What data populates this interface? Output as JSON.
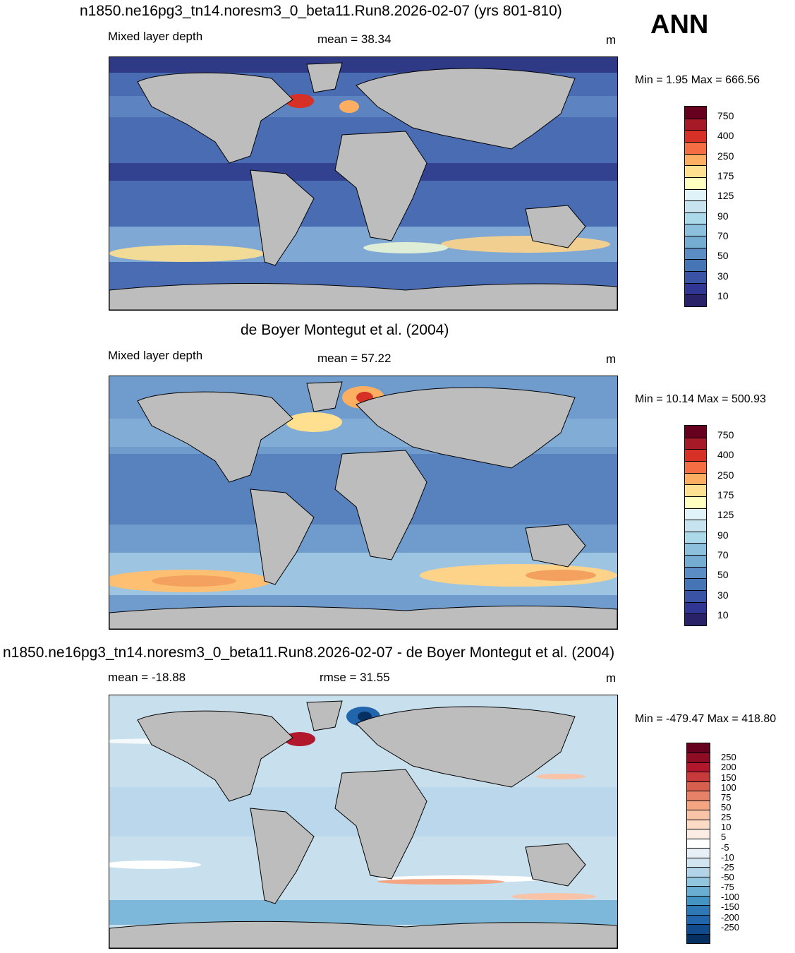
{
  "season": "ANN",
  "panels": [
    {
      "title": "n1850.ne16pg3_tn14.noresm3_0_beta11.Run8.2026-02-07 (yrs 801-810)",
      "left_label": "Mixed layer depth",
      "center_label": "mean =  38.34",
      "units": "m",
      "minmax": "Min =    1.95 Max = 666.56",
      "colorbar": {
        "labels": [
          "750",
          "400",
          "250",
          "175",
          "125",
          "90",
          "70",
          "50",
          "30",
          "10"
        ],
        "colors": [
          "#67001f",
          "#a61a28",
          "#d73027",
          "#f46d43",
          "#fdae61",
          "#fee090",
          "#ffffbf",
          "#e0f3f8",
          "#c6e3ef",
          "#abd9e9",
          "#8cc0dd",
          "#74add1",
          "#5b8cc4",
          "#4575b4",
          "#3b53a4",
          "#313695",
          "#2a2268"
        ]
      }
    },
    {
      "title": "de Boyer Montegut et al. (2004)",
      "left_label": "Mixed layer depth",
      "center_label": "mean =  57.22",
      "units": "m",
      "minmax": "Min =  10.14 Max = 500.93",
      "colorbar": {
        "labels": [
          "750",
          "400",
          "250",
          "175",
          "125",
          "90",
          "70",
          "50",
          "30",
          "10"
        ],
        "colors": [
          "#67001f",
          "#a61a28",
          "#d73027",
          "#f46d43",
          "#fdae61",
          "#fee090",
          "#ffffbf",
          "#e0f3f8",
          "#c6e3ef",
          "#abd9e9",
          "#8cc0dd",
          "#74add1",
          "#5b8cc4",
          "#4575b4",
          "#3b53a4",
          "#313695",
          "#2a2268"
        ]
      }
    },
    {
      "title": "n1850.ne16pg3_tn14.noresm3_0_beta11.Run8.2026-02-07 - de Boyer Montegut et al. (2004)",
      "left_label": "mean = -18.88",
      "center_label": "rmse =  31.55",
      "units": "m",
      "minmax": "Min = -479.47 Max = 418.80",
      "colorbar": {
        "labels": [
          "250",
          "200",
          "150",
          "100",
          "75",
          "50",
          "25",
          "10",
          "5",
          "-5",
          "-10",
          "-25",
          "-50",
          "-75",
          "-100",
          "-150",
          "-200",
          "-250"
        ],
        "colors": [
          "#67001f",
          "#8e0d25",
          "#b2182b",
          "#c7393b",
          "#d6604d",
          "#e58267",
          "#f4a582",
          "#f8c3a6",
          "#fddbc7",
          "#fbece4",
          "#ffffff",
          "#e6f0f6",
          "#d1e5f0",
          "#b3d4e8",
          "#92c5de",
          "#6aaed4",
          "#4393c3",
          "#2f78b6",
          "#2166ac",
          "#114b8c",
          "#053061"
        ]
      }
    }
  ]
}
